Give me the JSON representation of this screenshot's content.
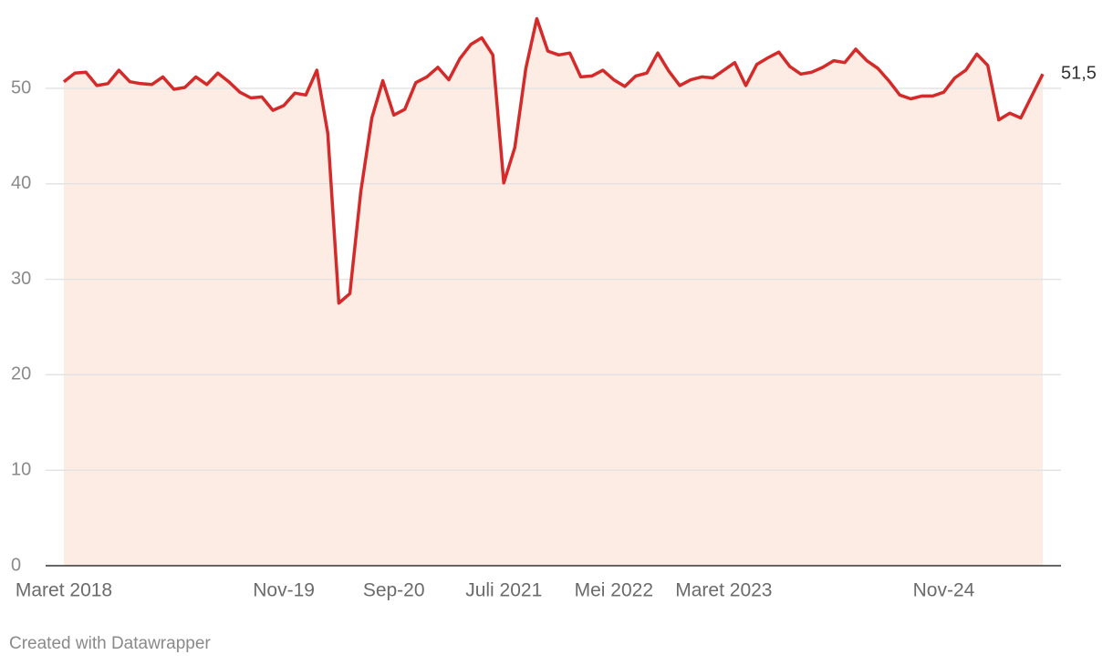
{
  "chart_data": {
    "type": "line",
    "categories": [
      "Maret 2018",
      null,
      null,
      null,
      null,
      null,
      null,
      null,
      null,
      null,
      null,
      null,
      null,
      null,
      null,
      null,
      null,
      null,
      null,
      null,
      "Nov-19",
      null,
      null,
      null,
      null,
      null,
      null,
      null,
      null,
      null,
      "Sep-20",
      null,
      null,
      null,
      null,
      null,
      null,
      null,
      null,
      null,
      "Juli 2021",
      null,
      null,
      null,
      null,
      null,
      null,
      null,
      null,
      null,
      "Mei 2022",
      null,
      null,
      null,
      null,
      null,
      null,
      null,
      null,
      null,
      "Maret 2023",
      null,
      null,
      null,
      null,
      null,
      null,
      null,
      null,
      null,
      null,
      null,
      null,
      null,
      null,
      null,
      null,
      null,
      null,
      null,
      "Nov-24",
      null,
      null,
      null,
      null,
      null,
      null,
      null,
      null,
      null
    ],
    "values": [
      50.7,
      51.6,
      51.7,
      50.3,
      50.5,
      51.9,
      50.7,
      50.5,
      50.4,
      51.2,
      49.9,
      50.1,
      51.2,
      50.4,
      51.6,
      50.7,
      49.6,
      49.0,
      49.1,
      47.7,
      48.2,
      49.5,
      49.3,
      51.9,
      45.3,
      27.5,
      28.5,
      39.2,
      46.9,
      50.8,
      47.2,
      47.8,
      50.6,
      51.2,
      52.2,
      50.9,
      53.1,
      54.6,
      55.3,
      53.5,
      40.1,
      43.8,
      52.1,
      57.3,
      53.9,
      53.5,
      53.7,
      51.2,
      51.3,
      51.9,
      50.9,
      50.2,
      51.3,
      51.6,
      53.7,
      51.8,
      50.3,
      50.9,
      51.2,
      51.1,
      51.9,
      52.7,
      50.3,
      52.5,
      53.2,
      53.8,
      52.3,
      51.5,
      51.7,
      52.2,
      52.9,
      52.7,
      54.1,
      52.9,
      52.1,
      50.8,
      49.3,
      48.9,
      49.2,
      49.2,
      49.6,
      51.1,
      51.9,
      53.6,
      52.4,
      46.7,
      47.4,
      46.9,
      49.2,
      51.5
    ],
    "value_labels": [
      null,
      null,
      null,
      null,
      null,
      null,
      null,
      null,
      null,
      null,
      null,
      null,
      null,
      null,
      null,
      null,
      null,
      null,
      null,
      null,
      null,
      null,
      null,
      null,
      null,
      null,
      null,
      null,
      null,
      null,
      null,
      null,
      null,
      null,
      null,
      null,
      null,
      null,
      null,
      null,
      null,
      null,
      null,
      null,
      null,
      null,
      null,
      null,
      null,
      null,
      null,
      null,
      null,
      null,
      null,
      null,
      null,
      null,
      null,
      null,
      null,
      null,
      null,
      null,
      null,
      null,
      null,
      null,
      null,
      null,
      null,
      null,
      null,
      null,
      null,
      null,
      null,
      null,
      null,
      null,
      null,
      null,
      null,
      null,
      null,
      null,
      null,
      null,
      null,
      "51,5"
    ],
    "color": "#d42a2a",
    "area_color": "#fdece4",
    "ylim": [
      0,
      58
    ],
    "yticks": [
      0,
      10,
      20,
      30,
      40,
      50
    ],
    "grid": true,
    "footer": "Created with Datawrapper"
  }
}
